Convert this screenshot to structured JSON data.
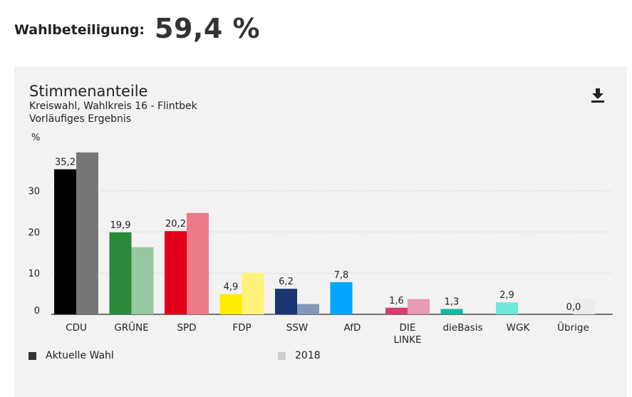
{
  "turnout": {
    "label": "Wahlbeteiligung:",
    "value": "59,4 %"
  },
  "panel": {
    "title": "Stimmenanteile",
    "subtitle": "Kreiswahl, Wahlkreis 16 - Flintbek",
    "status": "Vorläufiges Ergebnis",
    "download_icon": "download-icon"
  },
  "chart_data": {
    "type": "bar",
    "ylabel": "%",
    "ylim": [
      0,
      40
    ],
    "yticks": [
      0,
      10,
      20,
      30
    ],
    "grid": true,
    "categories": [
      "CDU",
      "GRÜNE",
      "SPD",
      "FDP",
      "SSW",
      "AfD",
      "DIE LINKE",
      "dieBasis",
      "WGK",
      "Übrige"
    ],
    "series": [
      {
        "name": "Aktuelle Wahl",
        "values": [
          35.2,
          19.9,
          20.2,
          4.9,
          6.2,
          7.8,
          1.6,
          1.3,
          2.9,
          0.0
        ],
        "labels": [
          "35,2",
          "19,9",
          "20,2",
          "4,9",
          "6,2",
          "7,8",
          "1,6",
          "1,3",
          "2,9",
          "0,0"
        ],
        "colors": [
          "#000000",
          "#2a8a3a",
          "#e2001a",
          "#ffed00",
          "#1a3672",
          "#00a6ff",
          "#d43f6c",
          "#14b8a6",
          "#6ee8d9",
          "#dcdcdc"
        ]
      },
      {
        "name": "2018",
        "values": [
          39.3,
          16.3,
          24.6,
          10.1,
          2.5,
          null,
          3.7,
          null,
          null,
          3.8
        ],
        "colors": [
          "#777777",
          "#96c99f",
          "#ec7a87",
          "#fff27a",
          "#8497ba",
          "#7fd2ff",
          "#e89bb4",
          "#89dcd2",
          "#b6f3ec",
          "#ececec"
        ]
      }
    ],
    "legend": [
      {
        "label": "Aktuelle Wahl",
        "color": "#333333"
      },
      {
        "label": "2018",
        "color": "#cccccc"
      }
    ]
  }
}
